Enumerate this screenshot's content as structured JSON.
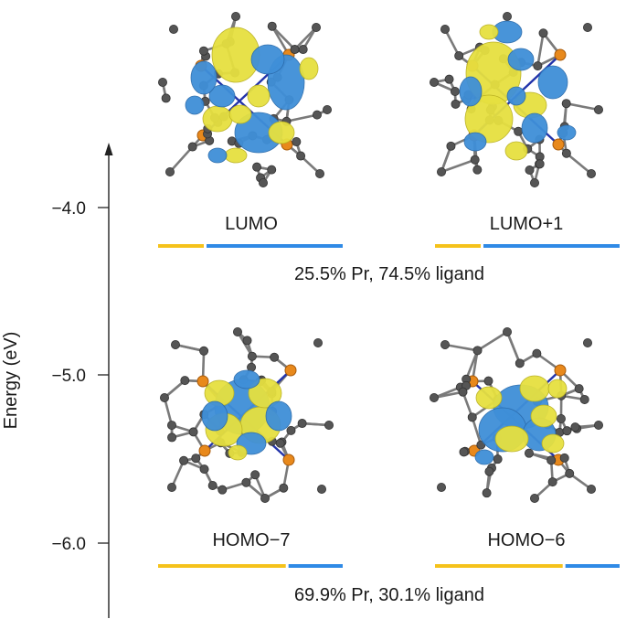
{
  "axis": {
    "label": "Energy (eV)",
    "ticks": [
      {
        "value": -4.0,
        "label": "−4.0"
      },
      {
        "value": -5.0,
        "label": "−5.0"
      },
      {
        "value": -6.0,
        "label": "−6.0"
      }
    ]
  },
  "orbitals": [
    {
      "id": "lumo",
      "label": "LUMO",
      "pr_fraction": 0.255
    },
    {
      "id": "lumo-plus-1",
      "label": "LUMO+1",
      "pr_fraction": 0.255
    },
    {
      "id": "homo-minus-7",
      "label": "HOMO−7",
      "pr_fraction": 0.699
    },
    {
      "id": "homo-minus-6",
      "label": "HOMO−6",
      "pr_fraction": 0.699
    }
  ],
  "compositions": {
    "upper": "25.5% Pr, 74.5% ligand",
    "lower": "69.9% Pr, 30.1% ligand"
  },
  "colors": {
    "pr": "#f5c21b",
    "ligand": "#2f8ae6",
    "lobe_yellow": "#e6e040",
    "lobe_blue": "#3f8fd8",
    "carbon_atom": "#555555",
    "phosphorus_atom": "#e8891c",
    "bond": "#7a7a7a",
    "axis": "#222222"
  }
}
